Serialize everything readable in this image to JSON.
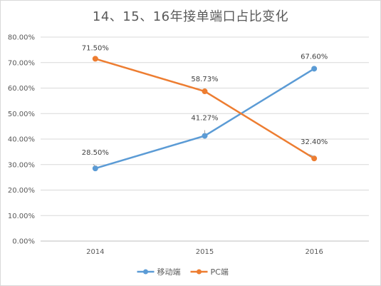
{
  "chart_data": {
    "type": "line",
    "title": "14、15、16年接单端口占比变化",
    "xlabel": "",
    "ylabel": "",
    "categories": [
      "2014",
      "2015",
      "2016"
    ],
    "ylim": [
      0,
      80
    ],
    "yticks": [
      0,
      10,
      20,
      30,
      40,
      50,
      60,
      70,
      80
    ],
    "ytick_labels": [
      "0.00%",
      "10.00%",
      "20.00%",
      "30.00%",
      "40.00%",
      "50.00%",
      "60.00%",
      "70.00%",
      "80.00%"
    ],
    "grid": true,
    "legend_position": "bottom",
    "series": [
      {
        "name": "移动端",
        "values": [
          28.5,
          41.27,
          67.6
        ],
        "labels": [
          "28.50%",
          "41.27%",
          "67.60%"
        ],
        "color": "#5b9bd5"
      },
      {
        "name": "PC端",
        "values": [
          71.5,
          58.73,
          32.4
        ],
        "labels": [
          "71.50%",
          "58.73%",
          "32.40%"
        ],
        "color": "#ed7d31"
      }
    ]
  }
}
